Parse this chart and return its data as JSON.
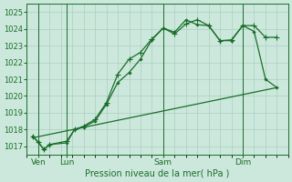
{
  "bg_color": "#cce8dc",
  "grid_color": "#aacfbf",
  "line_color": "#1a6e2a",
  "xlabel": "Pression niveau de la mer( hPa )",
  "ylim": [
    1016.5,
    1025.5
  ],
  "xlim": [
    0,
    23
  ],
  "yticks": [
    1017,
    1018,
    1019,
    1020,
    1021,
    1022,
    1023,
    1024,
    1025
  ],
  "xtick_labels": [
    "Ven",
    "Lun",
    "Sam",
    "Dim"
  ],
  "xtick_positions": [
    1,
    3.5,
    12,
    19
  ],
  "vline_positions": [
    1,
    3.5,
    12,
    19
  ],
  "series1_x": [
    0.5,
    1.0,
    1.5,
    2.0,
    3.5,
    4.2,
    5.0,
    6.0,
    7.0,
    8.0,
    9.0,
    10.0,
    11.0,
    12.0,
    13.0,
    14.0,
    15.0,
    16.0,
    17.0,
    18.0,
    19.0,
    20.0,
    21.0,
    22.0
  ],
  "series1_y": [
    1017.6,
    1017.25,
    1016.8,
    1017.1,
    1017.2,
    1018.0,
    1018.15,
    1018.5,
    1019.5,
    1020.8,
    1021.4,
    1022.2,
    1023.35,
    1024.05,
    1023.8,
    1024.55,
    1024.25,
    1024.2,
    1023.3,
    1023.3,
    1024.2,
    1023.85,
    1021.0,
    1020.5
  ],
  "series2_x": [
    0.5,
    1.0,
    1.5,
    2.0,
    3.5,
    4.2,
    5.0,
    6.0,
    7.0,
    8.0,
    9.0,
    10.0,
    11.0,
    12.0,
    13.0,
    14.0,
    15.0,
    16.0,
    17.0,
    18.0,
    19.0,
    20.0,
    21.0,
    22.0
  ],
  "series2_y": [
    1017.6,
    1017.25,
    1016.8,
    1017.1,
    1017.3,
    1018.0,
    1018.2,
    1018.6,
    1019.6,
    1021.3,
    1022.2,
    1022.6,
    1023.4,
    1024.05,
    1023.7,
    1024.3,
    1024.55,
    1024.2,
    1023.3,
    1023.35,
    1024.2,
    1024.2,
    1023.5,
    1023.5
  ],
  "series3_x": [
    0.5,
    22.0
  ],
  "series3_y": [
    1017.5,
    1020.5
  ]
}
